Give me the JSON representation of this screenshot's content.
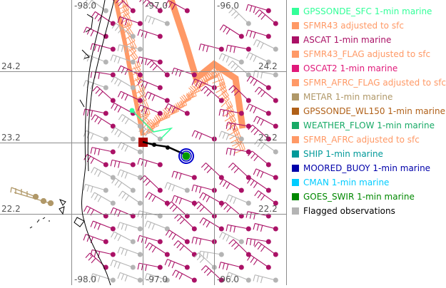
{
  "map": {
    "lon_labels": [
      "-98.0",
      "-97.0",
      "-96.0"
    ],
    "lat_labels": [
      "24.2",
      "23.2",
      "22.2"
    ],
    "colors": {
      "grid": "#8c8c8c",
      "coast": "#000000",
      "track": "#000000"
    }
  },
  "legend": {
    "items": [
      {
        "label": "GPSSONDE_SFC 1-min marine",
        "color": "#33ff99"
      },
      {
        "label": "SFMR43 adjusted to sfc",
        "color": "#ff9966"
      },
      {
        "label": "ASCAT 1-min marine",
        "color": "#aa1166"
      },
      {
        "label": "SFMR43_FLAG adjusted to sfc",
        "color": "#ff9966"
      },
      {
        "label": "OSCAT2 1-min marine",
        "color": "#e0197a"
      },
      {
        "label": "SFMR_AFRC_FLAG adjusted to sfc",
        "color": "#ff9966"
      },
      {
        "label": "METAR 1-min marine",
        "color": "#b09868"
      },
      {
        "label": "GPSSONDE_WL150 1-min marine",
        "color": "#b06018"
      },
      {
        "label": "WEATHER_FLOW 1-min marine",
        "color": "#18aa66"
      },
      {
        "label": "SFMR_AFRC adjusted to sfc",
        "color": "#ff9966"
      },
      {
        "label": "SHIP 1-min marine",
        "color": "#009999"
      },
      {
        "label": "MOORED_BUOY 1-min marine",
        "color": "#0000aa"
      },
      {
        "label": "CMAN 1-min marine",
        "color": "#00ccff"
      },
      {
        "label": "GOES_SWIR 1-min marine",
        "color": "#008800"
      },
      {
        "label": "Flagged observations",
        "color": "#b4b4b4",
        "text_color": "#000000"
      }
    ]
  }
}
